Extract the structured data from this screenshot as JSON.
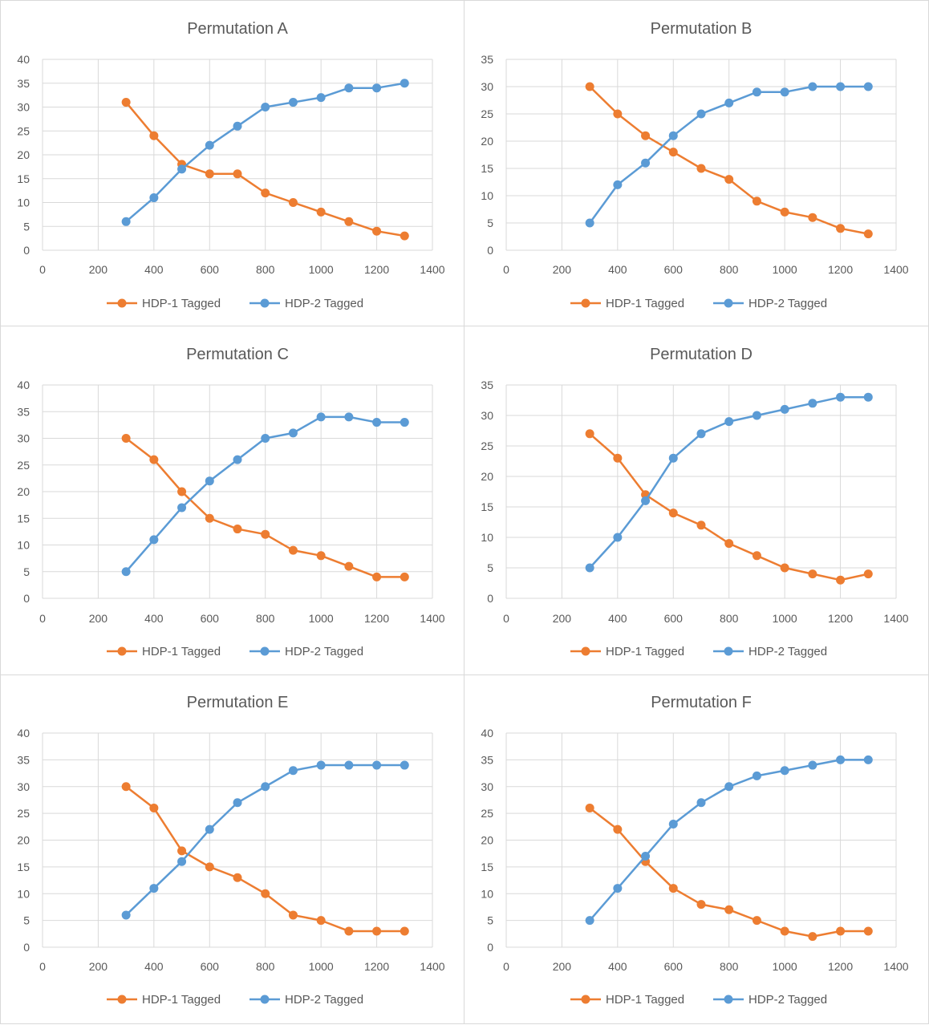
{
  "colors": {
    "hdp1": "#ED7D31",
    "hdp2": "#5B9BD5",
    "grid": "#d9d9d9",
    "text": "#595959"
  },
  "chart_data": [
    {
      "type": "line",
      "title": "Permutation A",
      "x": [
        300,
        400,
        500,
        600,
        700,
        800,
        900,
        1000,
        1100,
        1200,
        1300
      ],
      "xlim": [
        0,
        1400
      ],
      "ylim": [
        0,
        40
      ],
      "xticks": [
        0,
        200,
        400,
        600,
        800,
        1000,
        1200,
        1400
      ],
      "yticks": [
        0,
        5,
        10,
        15,
        20,
        25,
        30,
        35,
        40
      ],
      "legend_position": "bottom",
      "series": [
        {
          "name": "HDP-1 Tagged",
          "values": [
            31,
            24,
            18,
            16,
            16,
            12,
            10,
            8,
            6,
            4,
            3
          ]
        },
        {
          "name": "HDP-2 Tagged",
          "values": [
            6,
            11,
            17,
            22,
            26,
            30,
            31,
            32,
            34,
            34,
            35
          ]
        }
      ]
    },
    {
      "type": "line",
      "title": "Permutation B",
      "x": [
        300,
        400,
        500,
        600,
        700,
        800,
        900,
        1000,
        1100,
        1200,
        1300
      ],
      "xlim": [
        0,
        1400
      ],
      "ylim": [
        0,
        35
      ],
      "xticks": [
        0,
        200,
        400,
        600,
        800,
        1000,
        1200,
        1400
      ],
      "yticks": [
        0,
        5,
        10,
        15,
        20,
        25,
        30,
        35
      ],
      "legend_position": "bottom",
      "series": [
        {
          "name": "HDP-1 Tagged",
          "values": [
            30,
            25,
            21,
            18,
            15,
            13,
            9,
            7,
            6,
            4,
            3
          ]
        },
        {
          "name": "HDP-2 Tagged",
          "values": [
            5,
            12,
            16,
            21,
            25,
            27,
            29,
            29,
            30,
            30,
            30
          ]
        }
      ]
    },
    {
      "type": "line",
      "title": "Permutation C",
      "x": [
        300,
        400,
        500,
        600,
        700,
        800,
        900,
        1000,
        1100,
        1200,
        1300
      ],
      "xlim": [
        0,
        1400
      ],
      "ylim": [
        0,
        40
      ],
      "xticks": [
        0,
        200,
        400,
        600,
        800,
        1000,
        1200,
        1400
      ],
      "yticks": [
        0,
        5,
        10,
        15,
        20,
        25,
        30,
        35,
        40
      ],
      "legend_position": "bottom",
      "series": [
        {
          "name": "HDP-1 Tagged",
          "values": [
            30,
            26,
            20,
            15,
            13,
            12,
            9,
            8,
            6,
            4,
            4
          ]
        },
        {
          "name": "HDP-2 Tagged",
          "values": [
            5,
            11,
            17,
            22,
            26,
            30,
            31,
            34,
            34,
            33,
            33
          ]
        }
      ]
    },
    {
      "type": "line",
      "title": "Permutation D",
      "x": [
        300,
        400,
        500,
        600,
        700,
        800,
        900,
        1000,
        1100,
        1200,
        1300
      ],
      "xlim": [
        0,
        1400
      ],
      "ylim": [
        0,
        35
      ],
      "xticks": [
        0,
        200,
        400,
        600,
        800,
        1000,
        1200,
        1400
      ],
      "yticks": [
        0,
        5,
        10,
        15,
        20,
        25,
        30,
        35
      ],
      "legend_position": "bottom",
      "series": [
        {
          "name": "HDP-1 Tagged",
          "values": [
            27,
            23,
            17,
            14,
            12,
            9,
            7,
            5,
            4,
            3,
            4
          ]
        },
        {
          "name": "HDP-2 Tagged",
          "values": [
            5,
            10,
            16,
            23,
            27,
            29,
            30,
            31,
            32,
            33,
            33
          ]
        }
      ]
    },
    {
      "type": "line",
      "title": "Permutation E",
      "x": [
        300,
        400,
        500,
        600,
        700,
        800,
        900,
        1000,
        1100,
        1200,
        1300
      ],
      "xlim": [
        0,
        1400
      ],
      "ylim": [
        0,
        40
      ],
      "xticks": [
        0,
        200,
        400,
        600,
        800,
        1000,
        1200,
        1400
      ],
      "yticks": [
        0,
        5,
        10,
        15,
        20,
        25,
        30,
        35,
        40
      ],
      "legend_position": "bottom",
      "series": [
        {
          "name": "HDP-1 Tagged",
          "values": [
            30,
            26,
            18,
            15,
            13,
            10,
            6,
            5,
            3,
            3,
            3
          ]
        },
        {
          "name": "HDP-2 Tagged",
          "values": [
            6,
            11,
            16,
            22,
            27,
            30,
            33,
            34,
            34,
            34,
            34
          ]
        }
      ]
    },
    {
      "type": "line",
      "title": "Permutation F",
      "x": [
        300,
        400,
        500,
        600,
        700,
        800,
        900,
        1000,
        1100,
        1200,
        1300
      ],
      "xlim": [
        0,
        1400
      ],
      "ylim": [
        0,
        40
      ],
      "xticks": [
        0,
        200,
        400,
        600,
        800,
        1000,
        1200,
        1400
      ],
      "yticks": [
        0,
        5,
        10,
        15,
        20,
        25,
        30,
        35,
        40
      ],
      "legend_position": "bottom",
      "series": [
        {
          "name": "HDP-1 Tagged",
          "values": [
            26,
            22,
            16,
            11,
            8,
            7,
            5,
            3,
            2,
            3,
            3
          ]
        },
        {
          "name": "HDP-2 Tagged",
          "values": [
            5,
            11,
            17,
            23,
            27,
            30,
            32,
            33,
            34,
            35,
            35
          ]
        }
      ]
    }
  ]
}
